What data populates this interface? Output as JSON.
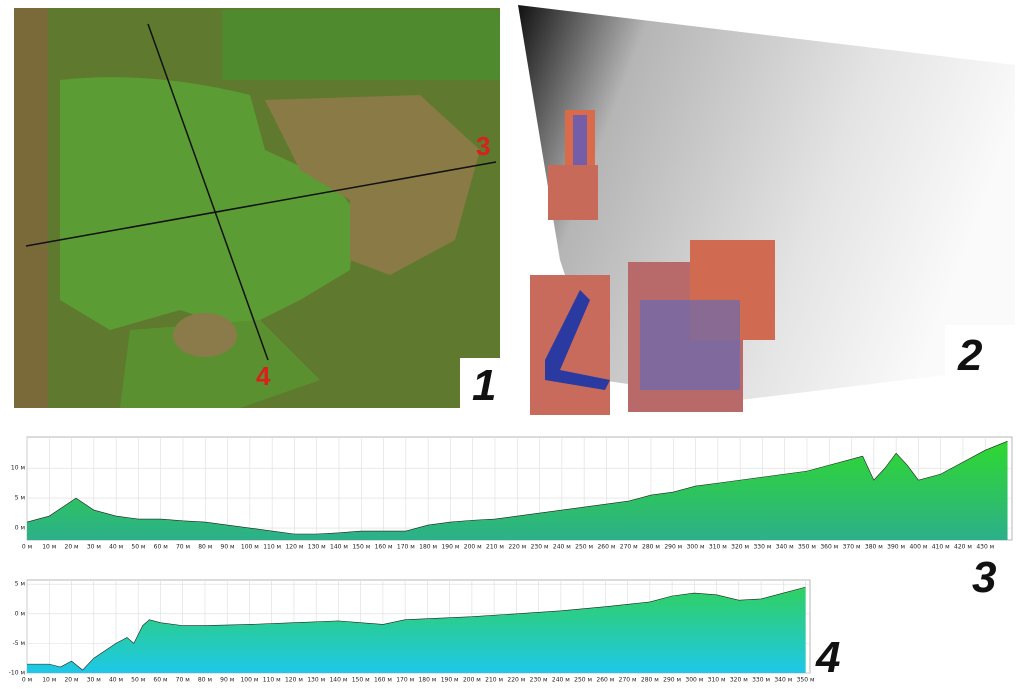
{
  "figure": {
    "panel_labels": [
      "1",
      "2",
      "3",
      "4"
    ],
    "photo_markers": [
      "3",
      "4"
    ]
  },
  "chart_data": [
    {
      "type": "area",
      "x": [
        0,
        10,
        20,
        22,
        30,
        40,
        50,
        60,
        70,
        80,
        90,
        100,
        110,
        120,
        130,
        140,
        150,
        160,
        170,
        180,
        190,
        200,
        210,
        220,
        230,
        240,
        250,
        260,
        270,
        280,
        290,
        300,
        310,
        320,
        330,
        340,
        350,
        360,
        370,
        375,
        380,
        385,
        390,
        395,
        400,
        410,
        420,
        430,
        440
      ],
      "values": [
        1,
        2,
        4.5,
        5,
        3,
        2,
        1.5,
        1.5,
        1.2,
        1,
        0.5,
        0,
        -0.5,
        -1,
        -1,
        -0.8,
        -0.5,
        -0.5,
        -0.5,
        0.5,
        1,
        1.3,
        1.5,
        2,
        2.5,
        3,
        3.5,
        4,
        4.5,
        5.5,
        6,
        7,
        7.5,
        8,
        8.5,
        9,
        9.5,
        10.5,
        11.5,
        12,
        8,
        10,
        12.5,
        10.5,
        8,
        9,
        11,
        13,
        14.5
      ],
      "colors": [
        "#2fd82f",
        "#2cb08a"
      ],
      "xlim": [
        0,
        442
      ],
      "ylim": [
        -2,
        15.2
      ],
      "grid": true,
      "xticks": [
        {
          "value": 0,
          "label": "0 м"
        },
        {
          "value": 10,
          "label": "10 м"
        },
        {
          "value": 20,
          "label": "20 м"
        },
        {
          "value": 30,
          "label": "30 м"
        },
        {
          "value": 40,
          "label": "40 м"
        },
        {
          "value": 50,
          "label": "50 м"
        },
        {
          "value": 60,
          "label": "60 м"
        },
        {
          "value": 70,
          "label": "70 м"
        },
        {
          "value": 80,
          "label": "80 м"
        },
        {
          "value": 90,
          "label": "90 м"
        },
        {
          "value": 100,
          "label": "100 м"
        },
        {
          "value": 110,
          "label": "110 м"
        },
        {
          "value": 120,
          "label": "120 м"
        },
        {
          "value": 130,
          "label": "130 м"
        },
        {
          "value": 140,
          "label": "140 м"
        },
        {
          "value": 150,
          "label": "150 м"
        },
        {
          "value": 160,
          "label": "160 м"
        },
        {
          "value": 170,
          "label": "170 м"
        },
        {
          "value": 180,
          "label": "180 м"
        },
        {
          "value": 190,
          "label": "190 м"
        },
        {
          "value": 200,
          "label": "200 м"
        },
        {
          "value": 210,
          "label": "210 м"
        },
        {
          "value": 220,
          "label": "220 м"
        },
        {
          "value": 230,
          "label": "230 м"
        },
        {
          "value": 240,
          "label": "240 м"
        },
        {
          "value": 250,
          "label": "250 м"
        },
        {
          "value": 260,
          "label": "260 м"
        },
        {
          "value": 270,
          "label": "270 м"
        },
        {
          "value": 280,
          "label": "280 м"
        },
        {
          "value": 290,
          "label": "290 м"
        },
        {
          "value": 300,
          "label": "300 м"
        },
        {
          "value": 310,
          "label": "310 м"
        },
        {
          "value": 320,
          "label": "320 м"
        },
        {
          "value": 330,
          "label": "330 м"
        },
        {
          "value": 340,
          "label": "340 м"
        },
        {
          "value": 350,
          "label": "350 м"
        },
        {
          "value": 360,
          "label": "360 м"
        },
        {
          "value": 370,
          "label": "370 м"
        },
        {
          "value": 380,
          "label": "380 м"
        },
        {
          "value": 390,
          "label": "390 м"
        },
        {
          "value": 400,
          "label": "400 м"
        },
        {
          "value": 410,
          "label": "410 м"
        },
        {
          "value": 420,
          "label": "420 м"
        },
        {
          "value": 430,
          "label": "430 м"
        }
      ],
      "yticks": [
        {
          "value": 10,
          "label": "10 м"
        },
        {
          "value": 5,
          "label": "5 м"
        },
        {
          "value": 0,
          "label": "0 м"
        }
      ]
    },
    {
      "type": "area",
      "x": [
        0,
        10,
        15,
        20,
        25,
        30,
        40,
        45,
        48,
        52,
        55,
        60,
        70,
        80,
        100,
        120,
        140,
        150,
        160,
        170,
        200,
        220,
        240,
        260,
        280,
        290,
        300,
        310,
        320,
        330,
        340,
        350
      ],
      "values": [
        -8.5,
        -8.5,
        -9,
        -8,
        -9.5,
        -7.5,
        -5,
        -4,
        -5,
        -2,
        -1,
        -1.5,
        -2,
        -2,
        -1.8,
        -1.5,
        -1.2,
        -1.5,
        -1.8,
        -1,
        -0.5,
        0,
        0.5,
        1.2,
        2,
        3,
        3.5,
        3.2,
        2.3,
        2.5,
        3.5,
        4.5
      ],
      "colors": [
        "#30d060",
        "#1ec8e8"
      ],
      "xlim": [
        0,
        352
      ],
      "ylim": [
        -10,
        5.7
      ],
      "grid": true,
      "xticks": [
        {
          "value": 0,
          "label": "0 м"
        },
        {
          "value": 10,
          "label": "10 м"
        },
        {
          "value": 20,
          "label": "20 м"
        },
        {
          "value": 30,
          "label": "30 м"
        },
        {
          "value": 40,
          "label": "40 м"
        },
        {
          "value": 50,
          "label": "50 м"
        },
        {
          "value": 60,
          "label": "60 м"
        },
        {
          "value": 70,
          "label": "70 м"
        },
        {
          "value": 80,
          "label": "80 м"
        },
        {
          "value": 90,
          "label": "90 м"
        },
        {
          "value": 100,
          "label": "100 м"
        },
        {
          "value": 110,
          "label": "110 м"
        },
        {
          "value": 120,
          "label": "120 м"
        },
        {
          "value": 130,
          "label": "130 м"
        },
        {
          "value": 140,
          "label": "140 м"
        },
        {
          "value": 150,
          "label": "150 м"
        },
        {
          "value": 160,
          "label": "160 м"
        },
        {
          "value": 170,
          "label": "170 м"
        },
        {
          "value": 180,
          "label": "180 м"
        },
        {
          "value": 190,
          "label": "190 м"
        },
        {
          "value": 200,
          "label": "200 м"
        },
        {
          "value": 210,
          "label": "210 м"
        },
        {
          "value": 220,
          "label": "220 м"
        },
        {
          "value": 230,
          "label": "230 м"
        },
        {
          "value": 240,
          "label": "240 м"
        },
        {
          "value": 250,
          "label": "250 м"
        },
        {
          "value": 260,
          "label": "260 м"
        },
        {
          "value": 270,
          "label": "270 м"
        },
        {
          "value": 280,
          "label": "280 м"
        },
        {
          "value": 290,
          "label": "290 м"
        },
        {
          "value": 300,
          "label": "300 м"
        },
        {
          "value": 310,
          "label": "310 м"
        },
        {
          "value": 320,
          "label": "320 м"
        },
        {
          "value": 330,
          "label": "330 м"
        },
        {
          "value": 340,
          "label": "340 м"
        },
        {
          "value": 350,
          "label": "350 м"
        }
      ],
      "yticks": [
        {
          "value": 5,
          "label": "5 м"
        },
        {
          "value": 0,
          "label": "0 м"
        },
        {
          "value": -5,
          "label": "-5 м"
        },
        {
          "value": -10,
          "label": "-10 м"
        }
      ]
    }
  ]
}
